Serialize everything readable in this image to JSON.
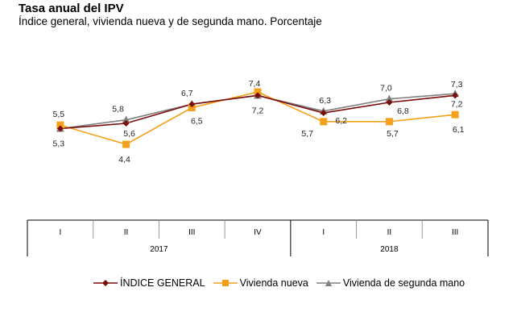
{
  "chart_data": {
    "type": "line",
    "title": "Tasa anual del IPV",
    "subtitle": "Índice general, vivienda nueva y de segunda mano. Porcentaje",
    "xlabel": "",
    "ylabel": "",
    "categories": [
      "I",
      "II",
      "III",
      "IV",
      "I",
      "II",
      "III"
    ],
    "groups": [
      {
        "label": "2017",
        "categories": [
          "I",
          "II",
          "III",
          "IV"
        ]
      },
      {
        "label": "2018",
        "categories": [
          "I",
          "II",
          "III"
        ]
      }
    ],
    "series": [
      {
        "name": "ÍNDICE GENERAL",
        "color": "#7b0c0c",
        "marker": "diamond",
        "values": [
          5.3,
          5.6,
          6.7,
          7.2,
          6.2,
          6.8,
          7.2
        ],
        "labels": [
          "",
          "5,6",
          "",
          "",
          "6,2",
          "6,8",
          "7,2"
        ]
      },
      {
        "name": "Vivienda nueva",
        "color": "#f5a01a",
        "marker": "square",
        "values": [
          5.5,
          4.4,
          6.5,
          7.4,
          5.7,
          5.7,
          6.1
        ],
        "labels": [
          "5,5",
          "4,4",
          "6,5",
          "7,4",
          "5,7",
          "5,7",
          "6,1"
        ]
      },
      {
        "name": "Vivienda de segunda mano",
        "color": "#808080",
        "marker": "triangle",
        "values": [
          5.3,
          5.8,
          6.7,
          7.2,
          6.3,
          7.0,
          7.3
        ],
        "labels": [
          "5,3",
          "5,8",
          "6,7",
          "7,2",
          "6,3",
          "7,0",
          "7,3"
        ]
      }
    ],
    "ylim": [
      4.0,
      8.0
    ],
    "grid": false,
    "legend": "bottom"
  }
}
